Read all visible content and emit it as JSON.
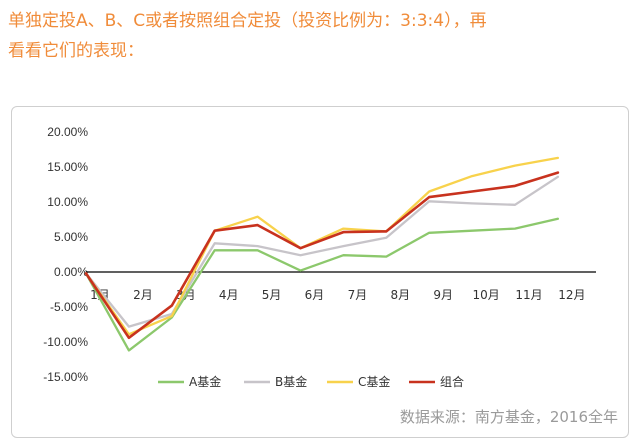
{
  "intro": {
    "line1": "单独定投A、B、C或者按照组合定投（投资比例为：3:3:4），再",
    "line2": "看看它们的表现："
  },
  "source_note": "数据来源：南方基金，2016全年",
  "colors": {
    "intro_text": "#f08c3a",
    "A基金": "#8cc86c",
    "B基金": "#c7c4c9",
    "C基金": "#f8d24c",
    "组合": "#c8321e",
    "axis": "#000000"
  },
  "chart_data": {
    "type": "line",
    "categories": [
      "1月",
      "2月",
      "3月",
      "4月",
      "5月",
      "6月",
      "7月",
      "8月",
      "9月",
      "10月",
      "11月",
      "12月"
    ],
    "series": [
      {
        "name": "A基金",
        "values": [
          -0.2,
          -11.2,
          -6.5,
          3.1,
          3.1,
          0.2,
          2.4,
          2.2,
          5.6,
          5.9,
          6.2,
          7.6
        ]
      },
      {
        "name": "B基金",
        "values": [
          -0.2,
          -7.8,
          -6.0,
          4.1,
          3.7,
          2.4,
          3.7,
          4.9,
          10.1,
          9.8,
          9.6,
          13.6
        ]
      },
      {
        "name": "C基金",
        "values": [
          -0.2,
          -8.9,
          -6.3,
          5.9,
          7.9,
          3.4,
          6.2,
          5.8,
          11.5,
          13.7,
          15.2,
          16.3
        ]
      },
      {
        "name": "组合",
        "values": [
          -0.2,
          -9.4,
          -4.8,
          5.9,
          6.7,
          3.4,
          5.7,
          5.8,
          10.7,
          11.5,
          12.3,
          14.2
        ]
      }
    ],
    "y_ticks": [
      "20.00%",
      "15.00%",
      "10.00%",
      "5.00%",
      "0.00%",
      "-5.00%",
      "-10.00%",
      "-15.00%"
    ],
    "ylim": [
      -15,
      20
    ],
    "grid": false,
    "legend_position": "bottom"
  }
}
